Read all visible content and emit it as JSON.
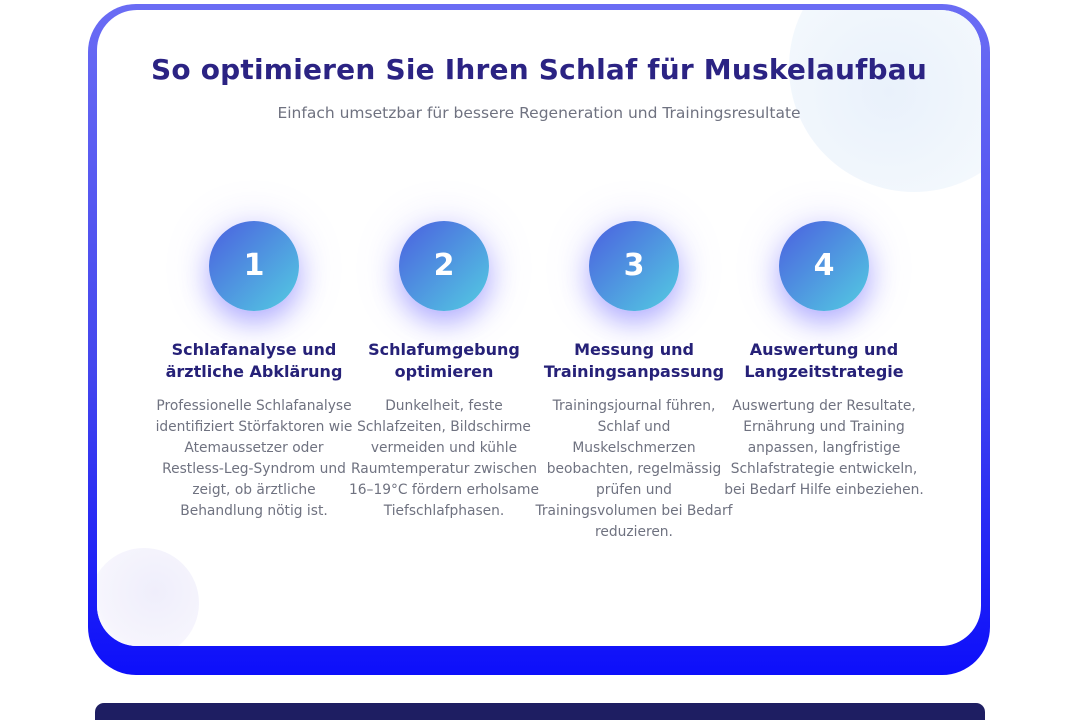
{
  "header": {
    "title": "So optimieren Sie Ihren Schlaf für Muskelaufbau",
    "subtitle": "Einfach umsetzbar für bessere Regeneration und Trainingsresultate"
  },
  "steps": [
    {
      "number": "1",
      "title": "Schlafanalyse und ärztliche Abklärung",
      "description": "Professionelle Schlafanalyse identifiziert Störfaktoren wie Atemaussetzer oder Restless-Leg-Syndrom und zeigt, ob ärztliche Behandlung nötig ist."
    },
    {
      "number": "2",
      "title": "Schlafumgebung optimieren",
      "description": "Dunkelheit, feste Schlafzeiten, Bildschirme vermeiden und kühle Raumtemperatur zwischen 16–19°C fördern erholsame Tiefschlafphasen."
    },
    {
      "number": "3",
      "title": "Messung und Trainingsanpassung",
      "description": "Trainingsjournal führen, Schlaf und Muskelschmerzen beobachten, regelmässig prüfen und Trainingsvolumen bei Bedarf reduzieren."
    },
    {
      "number": "4",
      "title": "Auswertung und Langzeitstrategie",
      "description": "Auswertung der Resultate, Ernährung und Training anpassen, langfristige Schlafstrategie entwickeln, bei Bedarf Hilfe einbeziehen."
    }
  ],
  "colors": {
    "title_text": "#2b2383",
    "step_title_text": "#262178",
    "body_text": "#6f7280",
    "circle_gradient_start": "#4b5fe0",
    "circle_gradient_end": "#53cce1",
    "frame_gradient_start": "#6a6cf4",
    "frame_gradient_end": "#0d0ffa",
    "bottom_bar": "#1e1e62"
  }
}
